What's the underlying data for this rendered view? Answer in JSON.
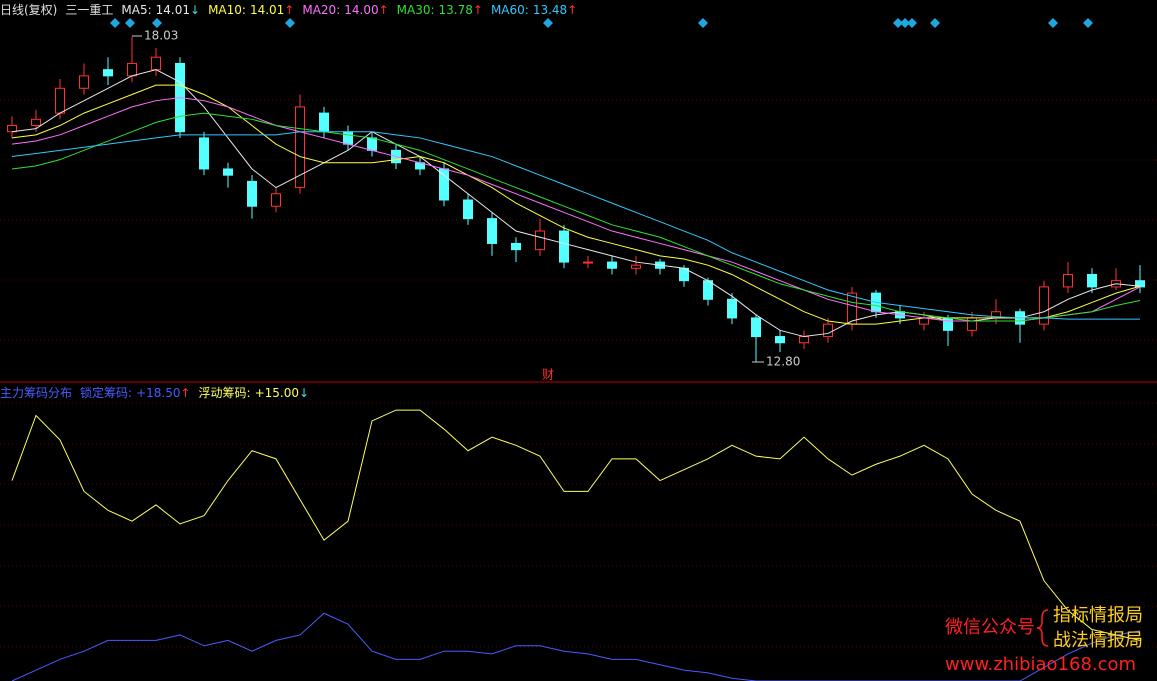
{
  "chart_data": [
    {
      "type": "candlestick",
      "title": "日线(复权)",
      "subtitle": "三一重工",
      "ylim": [
        12.5,
        18.3
      ],
      "up_color": "#ff3232",
      "down_color": "#54ffff",
      "candles": {
        "open": [
          16.5,
          16.6,
          16.8,
          17.2,
          17.5,
          17.4,
          17.5,
          17.6,
          16.4,
          15.9,
          15.7,
          15.3,
          15.6,
          16.8,
          16.5,
          16.4,
          16.2,
          16.0,
          15.9,
          15.4,
          15.1,
          14.7,
          14.6,
          14.9,
          14.4,
          14.4,
          14.3,
          14.4,
          14.3,
          14.1,
          13.8,
          13.5,
          13.2,
          13.1,
          13.2,
          13.4,
          13.9,
          13.6,
          13.4,
          13.5,
          13.3,
          13.5,
          13.6,
          13.4,
          14.0,
          14.2,
          14.0,
          14.1
        ],
        "high": [
          16.75,
          16.85,
          17.35,
          17.6,
          17.7,
          18.03,
          17.85,
          17.7,
          16.5,
          16.0,
          15.8,
          15.6,
          17.1,
          16.9,
          16.6,
          16.5,
          16.3,
          16.1,
          16.0,
          15.5,
          15.2,
          14.8,
          15.1,
          15.0,
          14.5,
          14.5,
          14.5,
          14.45,
          14.35,
          14.15,
          13.9,
          13.55,
          13.3,
          13.3,
          13.5,
          14.0,
          13.95,
          13.7,
          13.6,
          13.55,
          13.6,
          13.8,
          13.65,
          14.1,
          14.4,
          14.3,
          14.3,
          14.35
        ],
        "low": [
          16.4,
          16.5,
          16.7,
          17.1,
          17.25,
          17.3,
          17.4,
          16.4,
          15.8,
          15.6,
          15.1,
          15.2,
          15.5,
          16.4,
          16.2,
          16.1,
          15.9,
          15.8,
          15.3,
          15.0,
          14.5,
          14.4,
          14.5,
          14.3,
          14.3,
          14.2,
          14.2,
          14.2,
          14.0,
          13.7,
          13.4,
          12.8,
          12.95,
          13.0,
          13.1,
          13.3,
          13.5,
          13.4,
          13.3,
          13.05,
          13.2,
          13.4,
          13.1,
          13.3,
          13.9,
          13.9,
          13.95,
          13.9
        ],
        "close": [
          16.6,
          16.7,
          17.2,
          17.4,
          17.4,
          17.6,
          17.7,
          16.5,
          15.9,
          15.8,
          15.3,
          15.5,
          16.9,
          16.5,
          16.3,
          16.2,
          16.0,
          15.9,
          15.4,
          15.1,
          14.7,
          14.6,
          14.9,
          14.4,
          14.4,
          14.3,
          14.35,
          14.3,
          14.1,
          13.8,
          13.5,
          13.2,
          13.1,
          13.2,
          13.4,
          13.9,
          13.6,
          13.5,
          13.5,
          13.3,
          13.5,
          13.6,
          13.4,
          14.0,
          14.2,
          14.0,
          14.1,
          14.0
        ]
      },
      "series": [
        {
          "name": "MA5:",
          "color": "#e8e8e8",
          "value_label": "14.01",
          "trend": "↓",
          "values": [
            16.5,
            16.55,
            16.8,
            17.0,
            17.2,
            17.4,
            17.5,
            17.3,
            16.9,
            16.4,
            15.9,
            15.6,
            15.8,
            16.0,
            16.2,
            16.5,
            16.3,
            16.1,
            15.8,
            15.5,
            15.2,
            14.9,
            14.8,
            14.7,
            14.6,
            14.5,
            14.4,
            14.35,
            14.3,
            14.1,
            13.85,
            13.55,
            13.3,
            13.2,
            13.25,
            13.45,
            13.55,
            13.6,
            13.55,
            13.45,
            13.45,
            13.5,
            13.5,
            13.6,
            13.8,
            13.95,
            14.05,
            14.01
          ]
        },
        {
          "name": "MA10:",
          "color": "#ffff40",
          "value_label": "14.01",
          "trend": "↑",
          "values": [
            16.4,
            16.45,
            16.6,
            16.8,
            16.95,
            17.1,
            17.25,
            17.25,
            17.1,
            16.9,
            16.6,
            16.3,
            16.1,
            16.0,
            16.0,
            16.0,
            16.05,
            16.1,
            16.0,
            15.8,
            15.6,
            15.35,
            15.15,
            14.95,
            14.8,
            14.7,
            14.6,
            14.5,
            14.45,
            14.35,
            14.2,
            14.0,
            13.8,
            13.6,
            13.45,
            13.4,
            13.4,
            13.45,
            13.5,
            13.5,
            13.5,
            13.5,
            13.5,
            13.5,
            13.6,
            13.75,
            13.9,
            14.01
          ]
        },
        {
          "name": "MA20:",
          "color": "#ff70ff",
          "value_label": "14.00",
          "trend": "↑",
          "values": [
            16.3,
            16.35,
            16.45,
            16.6,
            16.75,
            16.9,
            17.0,
            17.05,
            17.0,
            16.9,
            16.75,
            16.6,
            16.5,
            16.4,
            16.3,
            16.2,
            16.1,
            16.0,
            15.9,
            15.8,
            15.65,
            15.5,
            15.35,
            15.2,
            15.05,
            14.9,
            14.8,
            14.7,
            14.6,
            14.5,
            14.4,
            14.25,
            14.1,
            13.95,
            13.8,
            13.7,
            13.6,
            13.55,
            13.5,
            13.45,
            13.45,
            13.45,
            13.45,
            13.5,
            13.55,
            13.6,
            13.8,
            14.0
          ]
        },
        {
          "name": "MA30:",
          "color": "#30e030",
          "value_label": "13.78",
          "trend": "↑",
          "values": [
            15.9,
            15.95,
            16.05,
            16.2,
            16.35,
            16.5,
            16.65,
            16.75,
            16.8,
            16.75,
            16.7,
            16.6,
            16.55,
            16.5,
            16.45,
            16.4,
            16.3,
            16.2,
            16.05,
            15.9,
            15.75,
            15.6,
            15.45,
            15.3,
            15.15,
            15.0,
            14.9,
            14.8,
            14.65,
            14.5,
            14.35,
            14.2,
            14.05,
            13.95,
            13.85,
            13.75,
            13.7,
            13.6,
            13.55,
            13.5,
            13.45,
            13.45,
            13.45,
            13.5,
            13.55,
            13.6,
            13.7,
            13.78
          ]
        },
        {
          "name": "MA60:",
          "color": "#30c8ff",
          "value_label": "13.48",
          "trend": "↑",
          "values": [
            16.1,
            16.15,
            16.2,
            16.25,
            16.3,
            16.35,
            16.4,
            16.45,
            16.45,
            16.45,
            16.45,
            16.45,
            16.5,
            16.5,
            16.5,
            16.5,
            16.45,
            16.4,
            16.3,
            16.2,
            16.1,
            15.95,
            15.8,
            15.65,
            15.5,
            15.35,
            15.2,
            15.05,
            14.9,
            14.75,
            14.55,
            14.4,
            14.25,
            14.1,
            13.95,
            13.85,
            13.75,
            13.7,
            13.65,
            13.6,
            13.55,
            13.52,
            13.5,
            13.5,
            13.48,
            13.48,
            13.48,
            13.48
          ]
        }
      ],
      "annotations": [
        "18.03",
        "12.80",
        "财"
      ]
    },
    {
      "type": "line",
      "title": "主力筹码分布",
      "ylim": [
        0,
        110
      ],
      "series": [
        {
          "name": "锁定筹码:",
          "color": "#4a5cff",
          "value_label": "+18.50",
          "trend": "↑",
          "values": [
            0,
            4,
            8,
            11,
            15,
            15,
            15,
            17,
            13,
            15,
            11,
            15,
            17,
            25,
            21,
            11,
            8,
            8,
            11,
            11,
            10,
            13,
            13,
            11,
            10,
            8,
            8,
            6,
            4,
            3,
            1,
            0,
            0,
            0,
            0,
            0,
            0,
            0,
            0,
            0,
            0,
            0,
            0,
            5,
            10,
            14,
            17,
            18.5
          ]
        },
        {
          "name": "浮动筹码:",
          "color": "#ffff60",
          "value_label": "+15.00",
          "trend": "↓",
          "values": [
            74,
            98,
            89,
            70,
            63,
            59,
            65,
            58,
            61,
            74,
            85,
            82,
            67,
            52,
            59,
            96,
            100,
            100,
            93,
            85,
            90,
            87,
            83,
            70,
            70,
            82,
            82,
            74,
            78,
            82,
            87,
            83,
            82,
            90,
            82,
            76,
            80,
            83,
            87,
            82,
            69,
            63,
            59,
            37,
            26,
            19,
            17,
            15
          ]
        }
      ]
    }
  ],
  "watermark": {
    "account_label": "微信公众号",
    "names": [
      "指标情报局",
      "战法情报局"
    ],
    "url": "www.zhibiao168.com"
  }
}
